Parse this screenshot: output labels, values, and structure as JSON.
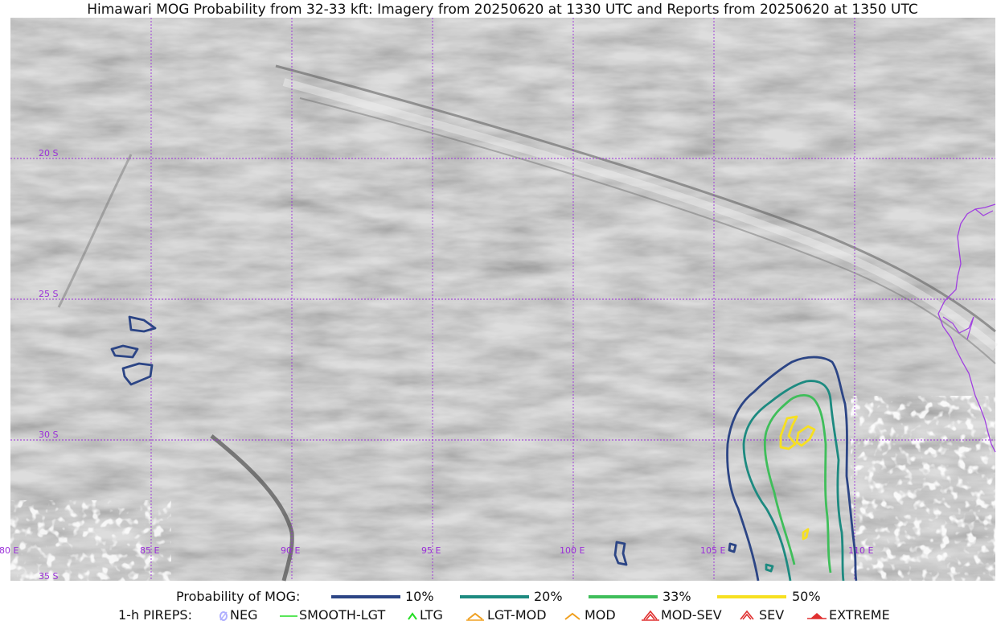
{
  "title": "Himawari MOG Probability from 32-33 kft: Imagery from 20250620 at 1330 UTC and Reports from 20250620 at 1350 UTC",
  "map": {
    "longitude_labels": [
      "80 E",
      "85 E",
      "90 E",
      "95 E",
      "100 E",
      "105 E",
      "110 E"
    ],
    "latitude_labels": [
      "20 S",
      "25 S",
      "30 S",
      "35 S"
    ],
    "grid_color": "#9b30d9",
    "coastline_color": "#a040e0"
  },
  "legend": {
    "probability": {
      "title": "Probability of MOG:",
      "items": [
        {
          "label": "10%",
          "color": "#2c4585"
        },
        {
          "label": "20%",
          "color": "#1d8a80"
        },
        {
          "label": "33%",
          "color": "#3fbe5a"
        },
        {
          "label": "50%",
          "color": "#f7e020"
        }
      ]
    },
    "pireps": {
      "title": "1-h PIREPS:",
      "items": [
        {
          "label": "NEG",
          "icon": "neg-icon",
          "color": "#b0b0ff"
        },
        {
          "label": "SMOOTH-LGT",
          "icon": "smooth-lgt-icon",
          "color": "#22dd22"
        },
        {
          "label": "LTG",
          "icon": "ltg-icon",
          "color": "#22dd22"
        },
        {
          "label": "LGT-MOD",
          "icon": "lgt-mod-icon",
          "color": "#f0a020"
        },
        {
          "label": "MOD",
          "icon": "mod-icon",
          "color": "#f0a020"
        },
        {
          "label": "MOD-SEV",
          "icon": "mod-sev-icon",
          "color": "#e03030"
        },
        {
          "label": "SEV",
          "icon": "sev-icon",
          "color": "#e03030"
        },
        {
          "label": "EXTREME",
          "icon": "extreme-icon",
          "color": "#e03030"
        }
      ]
    }
  }
}
